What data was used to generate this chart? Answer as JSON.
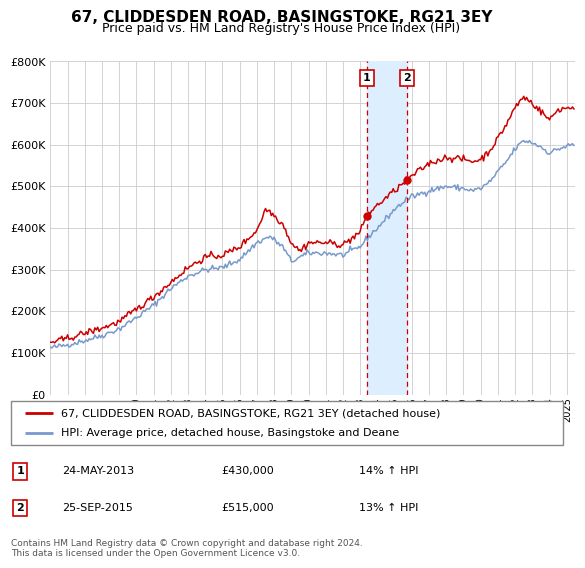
{
  "title": "67, CLIDDESDEN ROAD, BASINGSTOKE, RG21 3EY",
  "subtitle": "Price paid vs. HM Land Registry's House Price Index (HPI)",
  "legend_line1": "67, CLIDDESDEN ROAD, BASINGSTOKE, RG21 3EY (detached house)",
  "legend_line2": "HPI: Average price, detached house, Basingstoke and Deane",
  "transaction1_date": "24-MAY-2013",
  "transaction1_price": "£430,000",
  "transaction1_hpi": "14% ↑ HPI",
  "transaction2_date": "25-SEP-2015",
  "transaction2_price": "£515,000",
  "transaction2_hpi": "13% ↑ HPI",
  "footer": "Contains HM Land Registry data © Crown copyright and database right 2024.\nThis data is licensed under the Open Government Licence v3.0.",
  "price_line_color": "#cc0000",
  "hpi_line_color": "#7799cc",
  "highlight_color": "#ddeeff",
  "ylim": [
    0,
    800000
  ],
  "yticks": [
    0,
    100000,
    200000,
    300000,
    400000,
    500000,
    600000,
    700000,
    800000
  ],
  "transaction1_x": 2013.38,
  "transaction1_y": 430000,
  "transaction2_x": 2015.73,
  "transaction2_y": 515000,
  "xmin": 1995,
  "xmax": 2025.5
}
